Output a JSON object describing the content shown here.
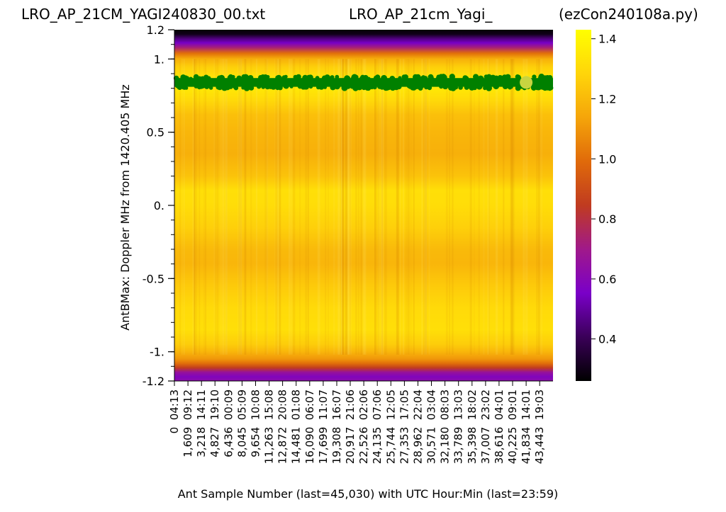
{
  "titles": {
    "left": "LRO_AP_21CM_YAGI240830_00.txt",
    "center": "LRO_AP_21cm_Yagi_",
    "right": "(ezCon240108a.py)"
  },
  "chart_data": {
    "type": "heatmap",
    "xlabel": "Ant Sample Number (last=45,030) with UTC Hour:Min (last=23:59)",
    "ylabel": "AntBMax:  Doppler MHz from 1420.405 MHz",
    "ylim": [
      -1.2,
      1.2
    ],
    "xlim": [
      0,
      45030
    ],
    "y_ticks": [
      {
        "value": 1.2,
        "label": "1.2"
      },
      {
        "value": 1.0,
        "label": "1."
      },
      {
        "value": 0.5,
        "label": "0.5"
      },
      {
        "value": 0.0,
        "label": "0."
      },
      {
        "value": -0.5,
        "label": "-0.5"
      },
      {
        "value": -1.0,
        "label": "-1."
      },
      {
        "value": -1.2,
        "label": "-1.2"
      }
    ],
    "y_minor_step": 0.1,
    "x_ticks": [
      {
        "value": 0,
        "label": "0  04:13"
      },
      {
        "value": 1609,
        "label": "1,609  09:12"
      },
      {
        "value": 3218,
        "label": "3,218  14:11"
      },
      {
        "value": 4827,
        "label": "4,827  19:10"
      },
      {
        "value": 6436,
        "label": "6,436  00:09"
      },
      {
        "value": 8045,
        "label": "8,045  05:09"
      },
      {
        "value": 9654,
        "label": "9,654  10:08"
      },
      {
        "value": 11263,
        "label": "11,263  15:08"
      },
      {
        "value": 12872,
        "label": "12,872  20:08"
      },
      {
        "value": 14481,
        "label": "14,481  01:08"
      },
      {
        "value": 16090,
        "label": "16,090  06:07"
      },
      {
        "value": 17699,
        "label": "17,699  11:07"
      },
      {
        "value": 19308,
        "label": "19,308  16:07"
      },
      {
        "value": 20917,
        "label": "20,917  21:06"
      },
      {
        "value": 22526,
        "label": "22,526  02:06"
      },
      {
        "value": 24135,
        "label": "24,135  07:06"
      },
      {
        "value": 25744,
        "label": "25,744  12:05"
      },
      {
        "value": 27353,
        "label": "27,353  17:05"
      },
      {
        "value": 28962,
        "label": "28,962  22:04"
      },
      {
        "value": 30571,
        "label": "30,571  03:04"
      },
      {
        "value": 32180,
        "label": "32,180  08:03"
      },
      {
        "value": 33789,
        "label": "33,789  13:03"
      },
      {
        "value": 35398,
        "label": "35,398  18:02"
      },
      {
        "value": 37007,
        "label": "37,007  23:02"
      },
      {
        "value": 38616,
        "label": "38,616  04:01"
      },
      {
        "value": 40225,
        "label": "40,225  09:01"
      },
      {
        "value": 41834,
        "label": "41,834  14:01"
      },
      {
        "value": 43443,
        "label": "43,443  19:03"
      }
    ],
    "profile": [
      {
        "y": -1.2,
        "v": 0.62
      },
      {
        "y": -1.17,
        "v": 0.58
      },
      {
        "y": -1.14,
        "v": 0.66
      },
      {
        "y": -1.11,
        "v": 0.85
      },
      {
        "y": -1.08,
        "v": 1.0
      },
      {
        "y": -1.05,
        "v": 1.1
      },
      {
        "y": -1.0,
        "v": 1.19
      },
      {
        "y": -0.95,
        "v": 1.26
      },
      {
        "y": -0.85,
        "v": 1.32
      },
      {
        "y": -0.7,
        "v": 1.3
      },
      {
        "y": -0.55,
        "v": 1.25
      },
      {
        "y": -0.4,
        "v": 1.19
      },
      {
        "y": -0.3,
        "v": 1.2
      },
      {
        "y": -0.15,
        "v": 1.27
      },
      {
        "y": 0.0,
        "v": 1.31
      },
      {
        "y": 0.1,
        "v": 1.32
      },
      {
        "y": 0.2,
        "v": 1.23
      },
      {
        "y": 0.35,
        "v": 1.17
      },
      {
        "y": 0.5,
        "v": 1.19
      },
      {
        "y": 0.62,
        "v": 1.22
      },
      {
        "y": 0.72,
        "v": 1.3
      },
      {
        "y": 0.8,
        "v": 1.35
      },
      {
        "y": 0.88,
        "v": 1.33
      },
      {
        "y": 0.95,
        "v": 1.26
      },
      {
        "y": 1.0,
        "v": 1.17
      },
      {
        "y": 1.04,
        "v": 1.0
      },
      {
        "y": 1.08,
        "v": 0.72
      },
      {
        "y": 1.11,
        "v": 0.55
      },
      {
        "y": 1.14,
        "v": 0.45
      },
      {
        "y": 1.17,
        "v": 0.3
      },
      {
        "y": 1.2,
        "v": 0.27
      }
    ],
    "colorbar": {
      "min": 0.26,
      "max": 1.43,
      "ticks": [
        1.4,
        1.2,
        1.0,
        0.8,
        0.6,
        0.4
      ],
      "tick_labels": [
        "1.4",
        "1.2",
        "1.0",
        "0.8",
        "0.6",
        "0.4"
      ],
      "colormap": "gnuplot",
      "stops": [
        "#000000",
        "#3a0058",
        "#7a00c8",
        "#a0198a",
        "#c03b20",
        "#e06a0a",
        "#f5a50a",
        "#ffd50a",
        "#ffff00"
      ]
    },
    "max_track": {
      "color": "#008000",
      "y_center": 0.84,
      "y_spread": 0.03,
      "x_max": 45030
    },
    "highlight_point": {
      "x": 41834,
      "y": 0.84,
      "color": "#c8d440"
    }
  }
}
